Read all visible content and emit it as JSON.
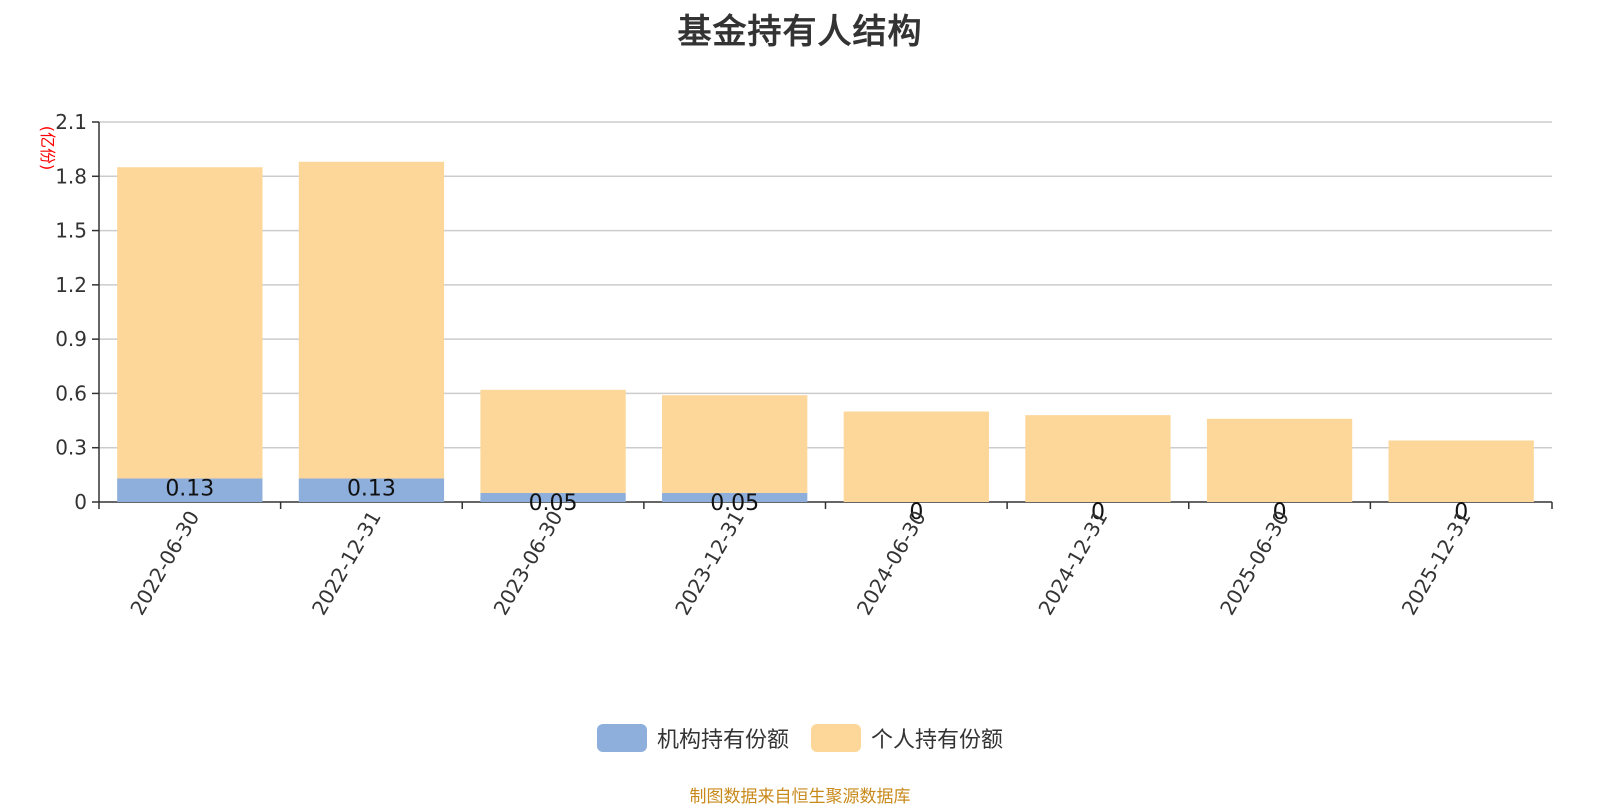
{
  "title": "基金持有人结构",
  "source": "制图数据来自恒生聚源数据库",
  "chart_data": {
    "type": "bar",
    "stacked": true,
    "title": "基金持有人结构",
    "ylabel": "(亿份)",
    "ylim": [
      0,
      2.1
    ],
    "yticks": [
      "0",
      "0.3",
      "0.6",
      "0.9",
      "1.2",
      "1.5",
      "1.8",
      "2.1"
    ],
    "categories": [
      "2022-06-30",
      "2022-12-31",
      "2023-06-30",
      "2023-12-31",
      "2024-06-30",
      "2024-12-31",
      "2025-06-30",
      "2025-12-31"
    ],
    "series": [
      {
        "name": "机构持有份额",
        "color": "#8eaedb",
        "values": [
          0.13,
          0.13,
          0.05,
          0.05,
          0,
          0,
          0,
          0
        ],
        "labels": [
          "0.13",
          "0.13",
          "0.05",
          "0.05",
          "0",
          "0",
          "0",
          "0"
        ]
      },
      {
        "name": "个人持有份额",
        "color": "#fdd79a",
        "values": [
          1.72,
          1.75,
          0.57,
          0.54,
          0.5,
          0.48,
          0.46,
          0.34
        ]
      }
    ],
    "grid": true,
    "legend": "bottom-center"
  }
}
